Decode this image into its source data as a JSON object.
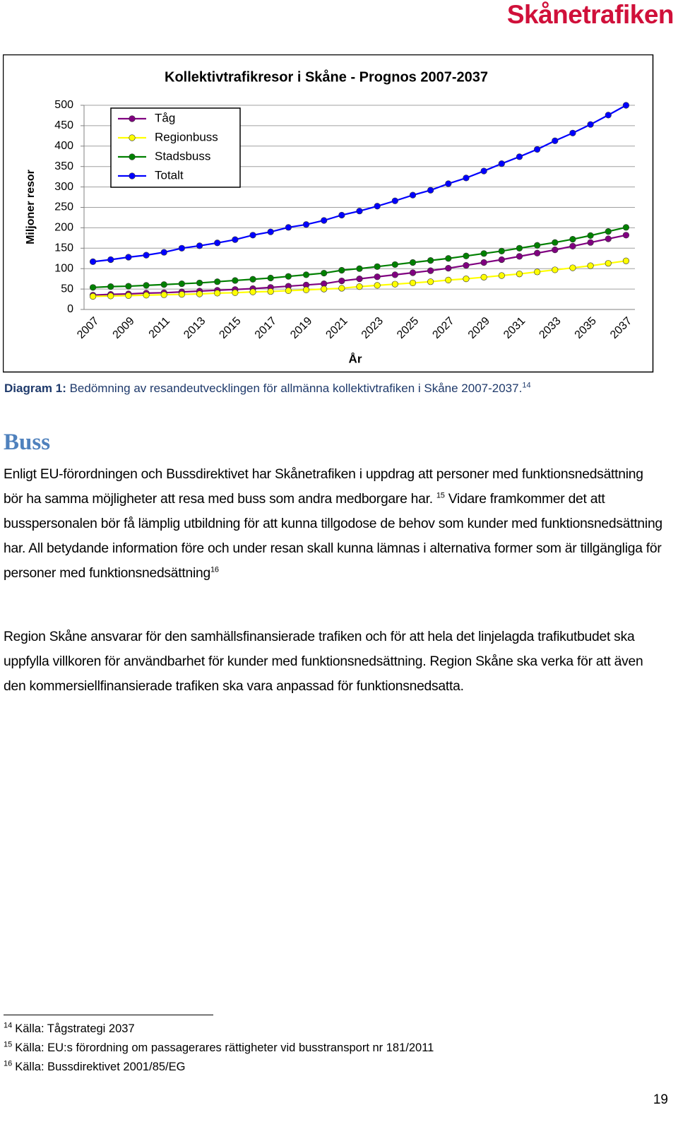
{
  "header": {
    "logo": "Skånetrafiken"
  },
  "chart_data": {
    "type": "line",
    "title": "Kollektivtrafikresor i Skåne - Prognos 2007-2037",
    "y_label": "Miljoner resor",
    "x_label": "År",
    "categories": [
      "2007",
      null,
      "2009",
      null,
      "2011",
      null,
      "2013",
      null,
      "2015",
      null,
      "2017",
      null,
      "2019",
      null,
      "2021",
      null,
      "2023",
      null,
      "2025",
      null,
      "2027",
      null,
      "2029",
      null,
      "2031",
      null,
      "2033",
      null,
      "2035",
      null,
      "2037"
    ],
    "ylim": [
      0,
      500
    ],
    "yticks": [
      0,
      50,
      100,
      150,
      200,
      250,
      300,
      350,
      400,
      450,
      500
    ],
    "grid": true,
    "legend": "upper left",
    "series": [
      {
        "name": "Tåg",
        "color": "#800080",
        "values": [
          35,
          37,
          38,
          40,
          41,
          43,
          45,
          47,
          49,
          51,
          54,
          57,
          60,
          63,
          70,
          75,
          80,
          85,
          90,
          95,
          101,
          108,
          115,
          122,
          130,
          138,
          146,
          155,
          164,
          173,
          182
        ]
      },
      {
        "name": "Regionbuss",
        "color": "#ffff00",
        "values": [
          32,
          33,
          34,
          35,
          36,
          37,
          38,
          40,
          41,
          43,
          44,
          46,
          48,
          50,
          52,
          56,
          59,
          62,
          65,
          68,
          72,
          75,
          79,
          83,
          87,
          92,
          97,
          102,
          107,
          113,
          119
        ]
      },
      {
        "name": "Stadsbuss",
        "color": "#008000",
        "values": [
          54,
          56,
          57,
          59,
          61,
          63,
          65,
          68,
          71,
          74,
          77,
          81,
          85,
          89,
          96,
          100,
          105,
          110,
          115,
          120,
          125,
          131,
          137,
          143,
          150,
          157,
          164,
          172,
          181,
          191,
          201
        ]
      },
      {
        "name": "Totalt",
        "color": "#0000ff",
        "values": [
          117,
          122,
          128,
          133,
          140,
          150,
          156,
          163,
          171,
          182,
          190,
          201,
          208,
          218,
          231,
          241,
          253,
          266,
          280,
          292,
          308,
          322,
          339,
          357,
          374,
          392,
          413,
          432,
          453,
          476,
          500
        ]
      }
    ]
  },
  "caption": {
    "runs": [
      {
        "bold": "Diagram 1:"
      },
      {
        "text": " Bedömning av resandeutvecklingen för allmänna kollektivtrafiken i Skåne 2007-2037."
      },
      {
        "sup": "14"
      }
    ]
  },
  "section": {
    "heading": "Buss",
    "paragraphs": [
      {
        "runs": [
          {
            "text": "Enligt EU-förordningen och Bussdirektivet har Skånetrafiken i uppdrag att personer med funktionsnedsättning bör ha samma möjligheter att resa med buss som andra medborgare har. "
          },
          {
            "sup": "15"
          },
          {
            "text": " Vidare framkommer det att busspersonalen bör få lämplig utbildning för att kunna tillgodose de behov som kunder med funktionsnedsättning har. All betydande information före och under resan skall kunna lämnas i alternativa former som är tillgängliga för personer med funktionsnedsättning"
          },
          {
            "sup": "16"
          }
        ]
      },
      {
        "runs": [
          {
            "text": "Region Skåne ansvarar för den samhällsfinansierade trafiken och för att hela det linjelagda trafikutbudet ska uppfylla villkoren för användbarhet för kunder med funktionsnedsättning. Region Skåne ska verka för att även den kommersiellfinansierade trafiken ska vara anpassad för funktionsnedsatta."
          }
        ]
      }
    ]
  },
  "footnotes": [
    {
      "number": "14",
      "text": "Källa: Tågstrategi 2037"
    },
    {
      "number": "15",
      "text": "Källa: EU:s förordning om passagerares rättigheter vid busstransport nr 181/2011"
    },
    {
      "number": "16",
      "text": "Källa: Bussdirektivet 2001/85/EG"
    }
  ],
  "page_number": "19"
}
